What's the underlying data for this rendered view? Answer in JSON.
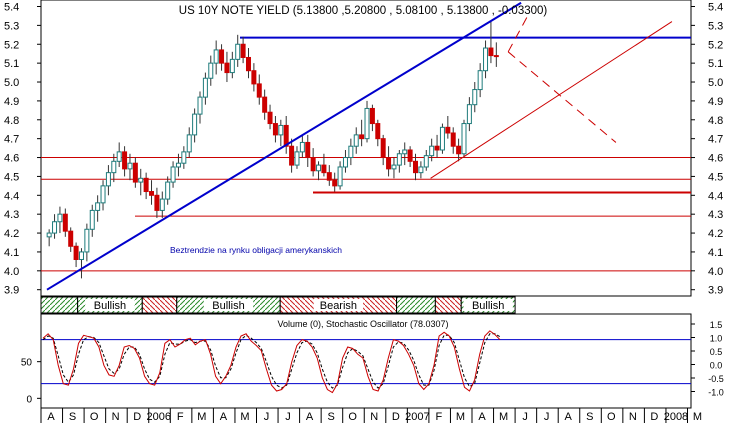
{
  "chart_data": {
    "type": "candlestick",
    "title": "US 10Y NOTE YIELD (5.13800 ,5.20800 , 5.08100 , 5.13800 , -0.03300)",
    "annotation": "Beztrendzie na rynku obligacji amerykanskich",
    "price_axis": {
      "ylim": [
        3.85,
        5.45
      ],
      "ticks": [
        "5.4",
        "5.3",
        "5.2",
        "5.1",
        "5.0",
        "4.9",
        "4.8",
        "4.7",
        "4.6",
        "4.5",
        "4.4",
        "4.3",
        "4.2",
        "4.1",
        "4.0",
        "3.9"
      ]
    },
    "x_axis": {
      "ticks": [
        "A",
        "S",
        "O",
        "N",
        "D",
        "2006",
        "F",
        "M",
        "A",
        "M",
        "J",
        "J",
        "A",
        "S",
        "O",
        "N",
        "D",
        "2007",
        "F",
        "M",
        "A",
        "M",
        "J",
        "J",
        "A",
        "S",
        "O",
        "N",
        "D",
        "2008",
        "M"
      ]
    },
    "horizontal_levels": [
      {
        "value": 5.235,
        "color": "#0000cc"
      },
      {
        "value": 4.6,
        "color": "#cc0000"
      },
      {
        "value": 4.485,
        "color": "#cc0000"
      },
      {
        "value": 4.415,
        "color": "#cc0000"
      },
      {
        "value": 4.29,
        "color": "#cc0000"
      },
      {
        "value": 4.0,
        "color": "#cc0000"
      }
    ],
    "trendlines": [
      {
        "from": {
          "month": 0.0,
          "value": 3.9
        },
        "to": {
          "month": 22.0,
          "value": 5.42
        },
        "color": "#0000cc"
      },
      {
        "from": {
          "month": 17.8,
          "value": 4.49
        },
        "to": {
          "month": 29.0,
          "value": 5.32
        },
        "color": "#cc0000"
      },
      {
        "from": {
          "month": 21.4,
          "value": 5.16
        },
        "to": {
          "month": 26.4,
          "value": 4.68
        },
        "color": "#cc0000",
        "style": "dashed"
      },
      {
        "from": {
          "month": 21.4,
          "value": 5.16
        },
        "to": {
          "month": 22.4,
          "value": 5.37
        },
        "color": "#cc0000",
        "style": "dashed"
      }
    ],
    "trend_bar": {
      "segments": [
        {
          "label": "",
          "from": 0.0,
          "to": 1.7,
          "kind": "bull"
        },
        {
          "label": "Bullish",
          "from": 1.7,
          "to": 4.7,
          "kind": "bull"
        },
        {
          "label": "",
          "from": 4.7,
          "to": 6.3,
          "kind": "bear"
        },
        {
          "label": "Bullish",
          "from": 6.3,
          "to": 11.1,
          "kind": "bull"
        },
        {
          "label": "Bearish",
          "from": 11.1,
          "to": 16.5,
          "kind": "bear"
        },
        {
          "label": "",
          "from": 16.5,
          "to": 18.3,
          "kind": "bull"
        },
        {
          "label": "",
          "from": 18.3,
          "to": 19.5,
          "kind": "bear"
        },
        {
          "label": "Bullish",
          "from": 19.5,
          "to": 22.0,
          "kind": "bull"
        }
      ]
    },
    "indicator": {
      "title": "Volume (0), Stochastic Oscillator (78.0307)",
      "ylim": [
        -5,
        100
      ],
      "left_ticks": [
        "50",
        "0"
      ],
      "right_ticks": [
        "1.5",
        "1.0",
        "0.5",
        "0.0",
        "-0.5",
        "-1.0"
      ],
      "reference_levels": [
        80,
        20
      ],
      "k_line": [
        82,
        88,
        80,
        45,
        20,
        18,
        40,
        75,
        86,
        84,
        82,
        70,
        45,
        32,
        30,
        45,
        70,
        72,
        68,
        55,
        30,
        20,
        18,
        35,
        75,
        80,
        70,
        74,
        80,
        82,
        73,
        78,
        80,
        60,
        30,
        20,
        30,
        45,
        70,
        85,
        88,
        78,
        72,
        65,
        40,
        18,
        10,
        12,
        20,
        50,
        72,
        80,
        78,
        70,
        55,
        28,
        12,
        8,
        20,
        55,
        70,
        68,
        60,
        55,
        30,
        12,
        10,
        25,
        55,
        80,
        78,
        72,
        60,
        45,
        20,
        12,
        20,
        45,
        85,
        90,
        85,
        70,
        40,
        15,
        10,
        25,
        60,
        85,
        92,
        87,
        80
      ],
      "d_line": [
        80,
        85,
        82,
        58,
        32,
        22,
        32,
        60,
        80,
        84,
        83,
        76,
        58,
        40,
        34,
        40,
        60,
        70,
        70,
        60,
        40,
        26,
        22,
        30,
        60,
        76,
        74,
        74,
        78,
        80,
        76,
        78,
        78,
        66,
        44,
        28,
        28,
        40,
        62,
        80,
        86,
        82,
        76,
        68,
        50,
        30,
        18,
        14,
        18,
        40,
        62,
        76,
        78,
        74,
        62,
        40,
        22,
        14,
        18,
        42,
        62,
        68,
        64,
        58,
        40,
        22,
        14,
        20,
        44,
        70,
        77,
        75,
        66,
        52,
        32,
        18,
        18,
        38,
        72,
        86,
        86,
        76,
        52,
        28,
        16,
        20,
        48,
        76,
        88,
        88,
        84
      ]
    },
    "candles_note": "Each candle: [month_position, open, high, low, close]",
    "candles": [
      [
        0.1,
        4.18,
        4.22,
        4.13,
        4.2
      ],
      [
        0.35,
        4.2,
        4.3,
        4.17,
        4.26
      ],
      [
        0.6,
        4.26,
        4.34,
        4.2,
        4.3
      ],
      [
        0.85,
        4.3,
        4.33,
        4.18,
        4.21
      ],
      [
        1.1,
        4.21,
        4.23,
        4.1,
        4.13
      ],
      [
        1.35,
        4.13,
        4.15,
        4.02,
        4.06
      ],
      [
        1.6,
        4.06,
        4.12,
        3.96,
        4.1
      ],
      [
        1.85,
        4.1,
        4.25,
        4.05,
        4.22
      ],
      [
        2.1,
        4.22,
        4.35,
        4.18,
        4.32
      ],
      [
        2.35,
        4.32,
        4.4,
        4.26,
        4.36
      ],
      [
        2.6,
        4.36,
        4.48,
        4.32,
        4.45
      ],
      [
        2.85,
        4.45,
        4.56,
        4.4,
        4.52
      ],
      [
        3.1,
        4.52,
        4.62,
        4.47,
        4.58
      ],
      [
        3.35,
        4.58,
        4.68,
        4.55,
        4.63
      ],
      [
        3.6,
        4.63,
        4.66,
        4.5,
        4.54
      ],
      [
        3.85,
        4.54,
        4.62,
        4.48,
        4.57
      ],
      [
        4.1,
        4.57,
        4.6,
        4.44,
        4.47
      ],
      [
        4.35,
        4.47,
        4.54,
        4.4,
        4.49
      ],
      [
        4.6,
        4.49,
        4.52,
        4.38,
        4.42
      ],
      [
        4.85,
        4.42,
        4.48,
        4.35,
        4.4
      ],
      [
        5.1,
        4.4,
        4.44,
        4.28,
        4.32
      ],
      [
        5.35,
        4.32,
        4.42,
        4.28,
        4.38
      ],
      [
        5.6,
        4.38,
        4.5,
        4.35,
        4.47
      ],
      [
        5.85,
        4.47,
        4.58,
        4.44,
        4.55
      ],
      [
        6.1,
        4.55,
        4.62,
        4.5,
        4.57
      ],
      [
        6.35,
        4.57,
        4.66,
        4.54,
        4.63
      ],
      [
        6.6,
        4.63,
        4.76,
        4.6,
        4.72
      ],
      [
        6.85,
        4.72,
        4.86,
        4.68,
        4.83
      ],
      [
        7.1,
        4.83,
        4.95,
        4.78,
        4.92
      ],
      [
        7.35,
        4.92,
        5.05,
        4.88,
        5.02
      ],
      [
        7.6,
        5.02,
        5.14,
        4.98,
        5.1
      ],
      [
        7.85,
        5.1,
        5.22,
        5.04,
        5.17
      ],
      [
        8.1,
        5.17,
        5.2,
        5.06,
        5.1
      ],
      [
        8.35,
        5.1,
        5.16,
        5.0,
        5.05
      ],
      [
        8.6,
        5.05,
        5.16,
        5.02,
        5.12
      ],
      [
        8.85,
        5.12,
        5.25,
        5.08,
        5.2
      ],
      [
        9.1,
        5.2,
        5.24,
        5.1,
        5.13
      ],
      [
        9.35,
        5.13,
        5.18,
        5.02,
        5.06
      ],
      [
        9.6,
        5.06,
        5.1,
        4.95,
        4.99
      ],
      [
        9.85,
        4.99,
        5.04,
        4.88,
        4.92
      ],
      [
        10.1,
        4.92,
        4.96,
        4.8,
        4.84
      ],
      [
        10.35,
        4.84,
        4.88,
        4.75,
        4.78
      ],
      [
        10.6,
        4.78,
        4.82,
        4.68,
        4.72
      ],
      [
        10.85,
        4.72,
        4.8,
        4.66,
        4.77
      ],
      [
        11.1,
        4.77,
        4.82,
        4.62,
        4.66
      ],
      [
        11.35,
        4.66,
        4.7,
        4.52,
        4.56
      ],
      [
        11.6,
        4.56,
        4.66,
        4.54,
        4.63
      ],
      [
        11.85,
        4.63,
        4.72,
        4.6,
        4.68
      ],
      [
        12.1,
        4.68,
        4.72,
        4.55,
        4.6
      ],
      [
        12.35,
        4.6,
        4.65,
        4.5,
        4.53
      ],
      [
        12.6,
        4.53,
        4.58,
        4.48,
        4.56
      ],
      [
        12.85,
        4.56,
        4.62,
        4.5,
        4.52
      ],
      [
        13.1,
        4.52,
        4.56,
        4.45,
        4.48
      ],
      [
        13.35,
        4.48,
        4.52,
        4.42,
        4.45
      ],
      [
        13.6,
        4.45,
        4.58,
        4.43,
        4.55
      ],
      [
        13.85,
        4.55,
        4.64,
        4.52,
        4.6
      ],
      [
        14.1,
        4.6,
        4.7,
        4.56,
        4.66
      ],
      [
        14.35,
        4.66,
        4.76,
        4.62,
        4.72
      ],
      [
        14.6,
        4.72,
        4.8,
        4.66,
        4.7
      ],
      [
        14.85,
        4.7,
        4.9,
        4.68,
        4.86
      ],
      [
        15.1,
        4.86,
        4.88,
        4.74,
        4.78
      ],
      [
        15.35,
        4.78,
        4.8,
        4.66,
        4.7
      ],
      [
        15.6,
        4.7,
        4.72,
        4.56,
        4.6
      ],
      [
        15.85,
        4.6,
        4.66,
        4.5,
        4.54
      ],
      [
        16.1,
        4.54,
        4.6,
        4.49,
        4.56
      ],
      [
        16.35,
        4.56,
        4.64,
        4.52,
        4.62
      ],
      [
        16.6,
        4.62,
        4.68,
        4.56,
        4.64
      ],
      [
        16.85,
        4.64,
        4.66,
        4.55,
        4.58
      ],
      [
        17.1,
        4.58,
        4.62,
        4.48,
        4.52
      ],
      [
        17.35,
        4.52,
        4.58,
        4.49,
        4.55
      ],
      [
        17.6,
        4.55,
        4.64,
        4.53,
        4.61
      ],
      [
        17.85,
        4.61,
        4.7,
        4.58,
        4.66
      ],
      [
        18.1,
        4.66,
        4.72,
        4.6,
        4.64
      ],
      [
        18.35,
        4.64,
        4.78,
        4.62,
        4.76
      ],
      [
        18.6,
        4.76,
        4.82,
        4.7,
        4.73
      ],
      [
        18.85,
        4.73,
        4.76,
        4.62,
        4.66
      ],
      [
        19.1,
        4.66,
        4.7,
        4.58,
        4.62
      ],
      [
        19.35,
        4.62,
        4.8,
        4.6,
        4.78
      ],
      [
        19.6,
        4.78,
        4.92,
        4.74,
        4.88
      ],
      [
        19.85,
        4.88,
        5.0,
        4.84,
        4.96
      ],
      [
        20.1,
        4.96,
        5.1,
        4.92,
        5.06
      ],
      [
        20.35,
        5.06,
        5.22,
        5.02,
        5.18
      ],
      [
        20.6,
        5.18,
        5.32,
        5.1,
        5.14
      ],
      [
        20.85,
        5.14,
        5.21,
        5.08,
        5.138
      ]
    ]
  }
}
